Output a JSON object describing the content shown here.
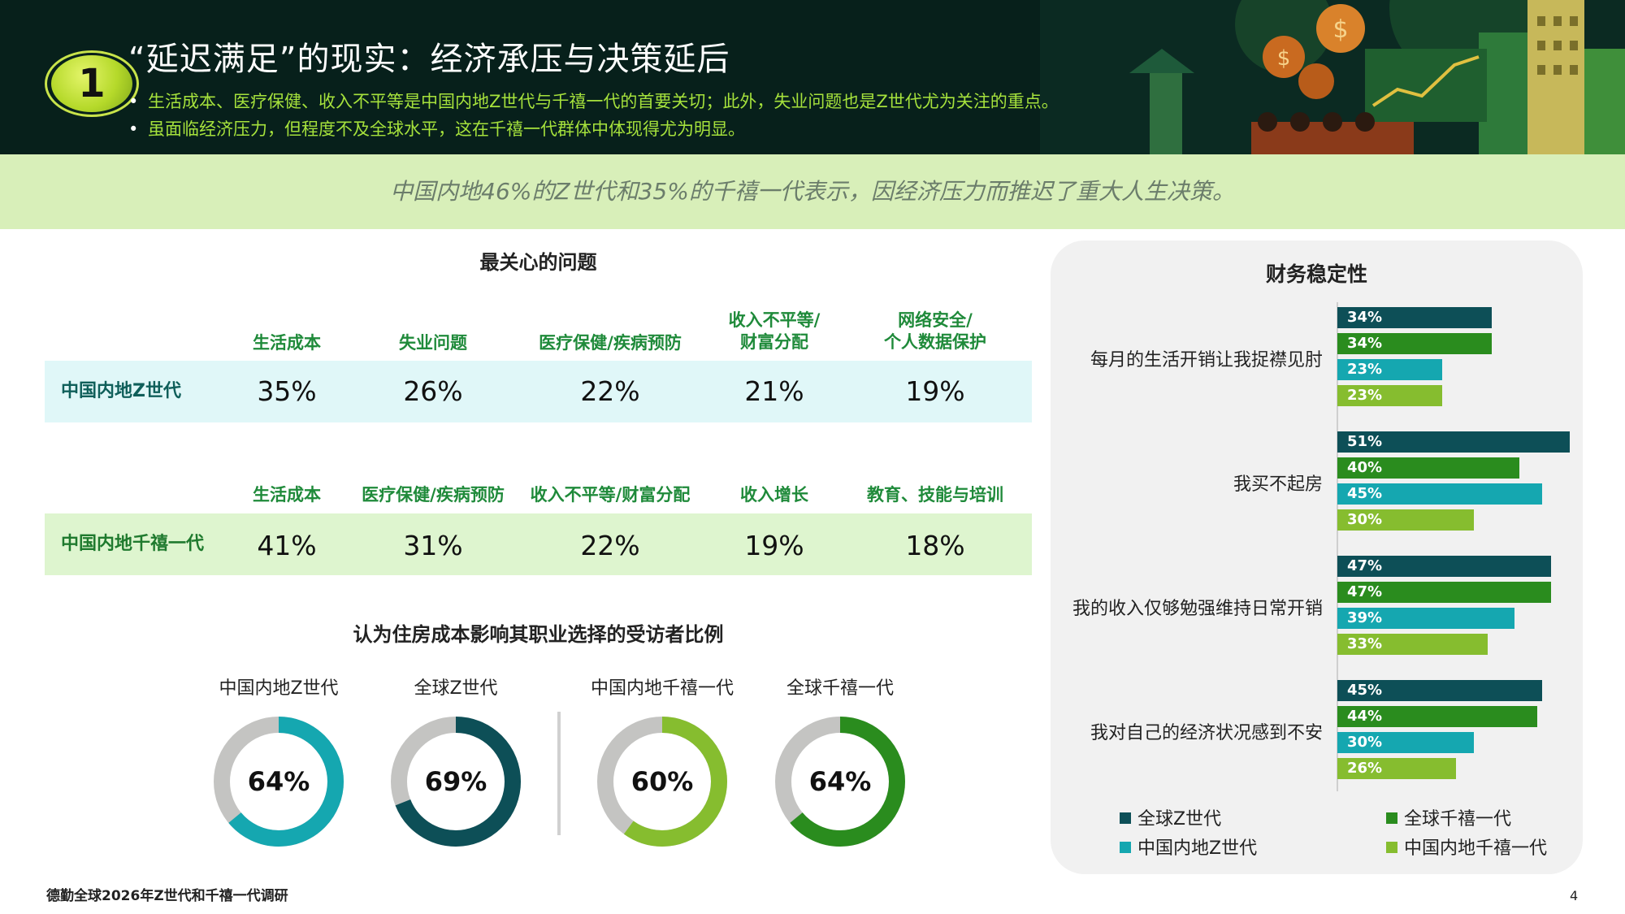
{
  "header": {
    "number": "1",
    "title": "“延迟满足”的现实：经济承压与决策延后",
    "bullets": [
      "生活成本、医疗保健、收入不平等是中国内地Z世代与千禧一代的首要关切；此外，失业问题也是Z世代尤为关注的重点。",
      "虽面临经济压力，但程度不及全球水平，这在千禧一代群体中体现得尤为明显。"
    ]
  },
  "banner": "中国内地46%的Z世代和35%的千禧一代表示，因经济压力而推迟了重大人生决策。",
  "concerns": {
    "title": "最关心的问题",
    "genz": {
      "label": "中国内地Z世代",
      "headers": [
        [
          "生活成本"
        ],
        [
          "失业问题"
        ],
        [
          "医疗保健/疾病预防"
        ],
        [
          "收入不平等/",
          "财富分配"
        ],
        [
          "网络安全/",
          "个人数据保护"
        ]
      ],
      "values": [
        "35%",
        "26%",
        "22%",
        "21%",
        "19%"
      ]
    },
    "millennial": {
      "label": "中国内地千禧一代",
      "headers": [
        "生活成本",
        "医疗保健/疾病预防",
        "收入不平等/财富分配",
        "收入增长",
        "教育、技能与培训"
      ],
      "values": [
        "41%",
        "31%",
        "22%",
        "19%",
        "18%"
      ]
    }
  },
  "housing": {
    "title": "认为住房成本影响其职业选择的受访者比例"
  },
  "finance": {
    "title": "财务稳定性"
  },
  "colors": {
    "global_genz": "#0d4f57",
    "global_millennial": "#2a8c1e",
    "china_genz": "#15a7b0",
    "china_millennial": "#86bd2f",
    "donut_rest": "#c4c4c2",
    "genz_row_bg": "#e0f7f8",
    "millennial_row_bg": "#def5cf",
    "genz_row_text": "#0f5f5a",
    "millennial_row_text": "#1f7a2e"
  },
  "chart_data": [
    {
      "type": "pie",
      "title": "认为住房成本影响其职业选择的受访者比例",
      "categories": [
        "中国内地Z世代",
        "全球Z世代",
        "中国内地千禧一代",
        "全球千禧一代"
      ],
      "values": [
        64,
        69,
        60,
        64
      ],
      "value_labels": [
        "64%",
        "69%",
        "60%",
        "64%"
      ],
      "colors": [
        "#15a7b0",
        "#0d4f57",
        "#86bd2f",
        "#2a8c1e"
      ]
    },
    {
      "type": "bar",
      "orientation": "horizontal",
      "title": "财务稳定性",
      "categories": [
        "每月的生活开销让我捉襟见肘",
        "我买不起房",
        "我的收入仅够勉强维持日常开销",
        "我对自己的经济状况感到不安"
      ],
      "series": [
        {
          "name": "全球Z世代",
          "color": "#0d4f57",
          "values": [
            34,
            51,
            47,
            45
          ]
        },
        {
          "name": "全球千禧一代",
          "color": "#2a8c1e",
          "values": [
            34,
            40,
            47,
            44
          ]
        },
        {
          "name": "中国内地Z世代",
          "color": "#15a7b0",
          "values": [
            23,
            45,
            39,
            30
          ]
        },
        {
          "name": "中国内地千禧一代",
          "color": "#86bd2f",
          "values": [
            23,
            30,
            33,
            26
          ]
        }
      ],
      "legend": "bottom"
    }
  ],
  "footer": "德勤全球2026年Z世代和千禧一代调研",
  "page_number": "4"
}
